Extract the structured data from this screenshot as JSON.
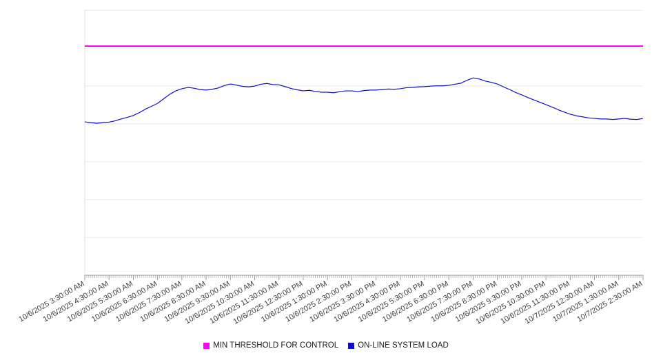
{
  "chart": {
    "legend": [
      {
        "label": "MIN THRESHOLD FOR CONTROL",
        "color": "#ff00ff"
      },
      {
        "label": "ON-LINE SYSTEM LOAD",
        "color": "#0d0dcd"
      }
    ]
  },
  "chart_data": {
    "type": "line",
    "title": "",
    "xlabel": "",
    "ylabel": "",
    "ylim": [
      0,
      100
    ],
    "y_divisions": 7,
    "y_axis_labels_visible": false,
    "note": "y-axis has no visible tick labels; series values are relative estimates on a 0-100 scale of plot height",
    "grid": "horizontal",
    "legend_position": "bottom-center",
    "x_tick_labels": [
      "10/6/2025 3:30:00 AM",
      "10/6/2025 4:30:00 AM",
      "10/6/2025 5:30:00 AM",
      "10/6/2025 6:30:00 AM",
      "10/6/2025 7:30:00 AM",
      "10/6/2025 8:30:00 AM",
      "10/6/2025 9:30:00 AM",
      "10/6/2025 10:30:00 AM",
      "10/6/2025 11:30:00 AM",
      "10/6/2025 12:30:00 PM",
      "10/6/2025 1:30:00 PM",
      "10/6/2025 2:30:00 PM",
      "10/6/2025 3:30:00 PM",
      "10/6/2025 4:30:00 PM",
      "10/6/2025 5:30:00 PM",
      "10/6/2025 6:30:00 PM",
      "10/6/2025 7:30:00 PM",
      "10/6/2025 8:30:00 PM",
      "10/6/2025 9:30:00 PM",
      "10/6/2025 10:30:00 PM",
      "10/6/2025 11:30:00 PM",
      "10/7/2025 12:30:00 AM",
      "10/7/2025 1:30:00 AM",
      "10/7/2025 2:30:00 AM"
    ],
    "series": [
      {
        "name": "MIN THRESHOLD FOR CONTROL",
        "color": "#ff00ff",
        "style": "horizontal-threshold",
        "value": 86.5
      },
      {
        "name": "ON-LINE SYSTEM LOAD",
        "color": "#0d0dcd",
        "sample_interval_minutes": 15,
        "start": "10/6/2025 3:30:00 AM",
        "end": "10/7/2025 2:30:00 AM",
        "values": [
          57.9,
          57.6,
          57.4,
          57.6,
          57.8,
          58.3,
          59.0,
          59.6,
          60.3,
          61.4,
          62.7,
          63.8,
          64.9,
          66.6,
          68.3,
          69.6,
          70.4,
          70.9,
          70.6,
          70.1,
          69.9,
          70.2,
          70.7,
          71.6,
          72.2,
          71.8,
          71.3,
          71.1,
          71.4,
          72.1,
          72.4,
          72.0,
          71.9,
          71.2,
          70.5,
          70.0,
          69.6,
          69.8,
          69.4,
          69.1,
          69.1,
          68.9,
          69.3,
          69.6,
          69.6,
          69.3,
          69.7,
          69.9,
          69.9,
          70.1,
          70.3,
          70.2,
          70.4,
          70.8,
          70.9,
          71.1,
          71.2,
          71.4,
          71.5,
          71.5,
          71.7,
          72.1,
          72.5,
          73.6,
          74.5,
          74.1,
          73.3,
          72.8,
          72.2,
          71.1,
          70.1,
          69.0,
          68.1,
          67.1,
          66.2,
          65.3,
          64.4,
          63.5,
          62.5,
          61.6,
          60.8,
          60.2,
          59.8,
          59.4,
          59.2,
          59.0,
          59.0,
          58.8,
          59.0,
          59.2,
          58.9,
          58.8,
          59.2
        ]
      }
    ]
  }
}
